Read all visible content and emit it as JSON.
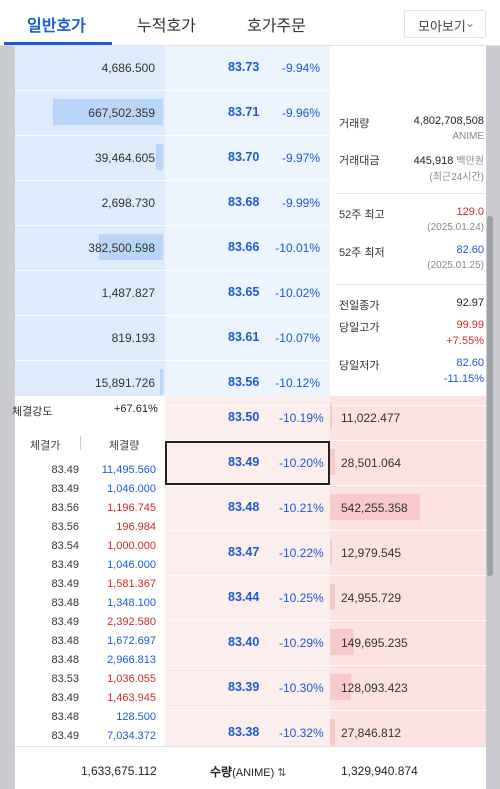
{
  "tabs": [
    {
      "label": "일반호가"
    },
    {
      "label": "누적호가"
    },
    {
      "label": "호가주문"
    }
  ],
  "more_select": {
    "label": "모아보기",
    "chevron": "chevron-down-icon"
  },
  "asks": [
    {
      "qty": "4,686.500",
      "price": "83.73",
      "pct": "-9.94%",
      "bar": 0
    },
    {
      "qty": "667,502.359",
      "price": "83.71",
      "pct": "-9.96%",
      "bar": 0.74
    },
    {
      "qty": "39,464.605",
      "price": "83.70",
      "pct": "-9.97%",
      "bar": 0.05
    },
    {
      "qty": "2,698.730",
      "price": "83.68",
      "pct": "-9.99%",
      "bar": 0
    },
    {
      "qty": "382,500.598",
      "price": "83.66",
      "pct": "-10.01%",
      "bar": 0.43
    },
    {
      "qty": "1,487.827",
      "price": "83.65",
      "pct": "-10.02%",
      "bar": 0
    },
    {
      "qty": "819.193",
      "price": "83.61",
      "pct": "-10.07%",
      "bar": 0
    },
    {
      "qty": "15,891.726",
      "price": "83.56",
      "pct": "-10.12%",
      "bar": 0.02
    }
  ],
  "bids": [
    {
      "price": "83.50",
      "pct": "-10.19%",
      "qty": "11,022.477",
      "bar": 0.01
    },
    {
      "price": "83.49",
      "pct": "-10.20%",
      "qty": "28,501.064",
      "bar": 0.03
    },
    {
      "price": "83.48",
      "pct": "-10.21%",
      "qty": "542,255.358",
      "bar": 0.59
    },
    {
      "price": "83.47",
      "pct": "-10.22%",
      "qty": "12,979.545",
      "bar": 0.01
    },
    {
      "price": "83.44",
      "pct": "-10.25%",
      "qty": "24,955.729",
      "bar": 0.03
    },
    {
      "price": "83.40",
      "pct": "-10.29%",
      "qty": "149,695.235",
      "bar": 0.16
    },
    {
      "price": "83.39",
      "pct": "-10.30%",
      "qty": "128,093.423",
      "bar": 0.14
    },
    {
      "price": "83.38",
      "pct": "-10.32%",
      "qty": "27,846.812",
      "bar": 0.03
    }
  ],
  "info": {
    "volume_label": "거래량",
    "volume_value": "4,802,708,508",
    "volume_unit": "ANIME",
    "amount_label": "거래대금",
    "amount_value": "445,918",
    "amount_unit": "백만원",
    "amount_note": "(최근24시간)",
    "high52_label": "52주 최고",
    "high52_value": "129.0",
    "high52_date": "(2025.01.24)",
    "low52_label": "52주 최저",
    "low52_value": "82.60",
    "low52_date": "(2025.01.25)",
    "prev_close_label": "전일종가",
    "prev_close_value": "92.97",
    "day_high_label": "당일고가",
    "day_high_value": "99.99",
    "day_high_pct": "+7.55%",
    "day_low_label": "당일저가",
    "day_low_value": "82.60",
    "day_low_pct": "-11.15%"
  },
  "strength": {
    "label": "체결강도",
    "value": "+67.61%"
  },
  "trades_header": {
    "price": "체결가",
    "volume": "체결량"
  },
  "trades": [
    {
      "price": "83.49",
      "vol": "11,495.560",
      "side": "buy"
    },
    {
      "price": "83.49",
      "vol": "1,046.000",
      "side": "buy"
    },
    {
      "price": "83.56",
      "vol": "1,196.745",
      "side": "sell"
    },
    {
      "price": "83.56",
      "vol": "196.984",
      "side": "sell"
    },
    {
      "price": "83.54",
      "vol": "1,000.000",
      "side": "sell"
    },
    {
      "price": "83.49",
      "vol": "1,046.000",
      "side": "buy"
    },
    {
      "price": "83.49",
      "vol": "1,581.367",
      "side": "sell"
    },
    {
      "price": "83.48",
      "vol": "1,348.100",
      "side": "buy"
    },
    {
      "price": "83.49",
      "vol": "2,392.580",
      "side": "sell"
    },
    {
      "price": "83.48",
      "vol": "1,672.697",
      "side": "buy"
    },
    {
      "price": "83.48",
      "vol": "2,966.813",
      "side": "buy"
    },
    {
      "price": "83.53",
      "vol": "1,036.055",
      "side": "sell"
    },
    {
      "price": "83.49",
      "vol": "1,463.945",
      "side": "sell"
    },
    {
      "price": "83.48",
      "vol": "128.500",
      "side": "buy"
    },
    {
      "price": "83.49",
      "vol": "7,034.372",
      "side": "buy"
    }
  ],
  "footer": {
    "ask_total": "1,633,675.112",
    "mid_label": "수량",
    "mid_unit": "(ANIME)",
    "swap_icon": "swap-icon",
    "bid_total": "1,329,940.874"
  },
  "colors": {
    "blue": "#1a5bd0",
    "red": "#d12a2a"
  }
}
